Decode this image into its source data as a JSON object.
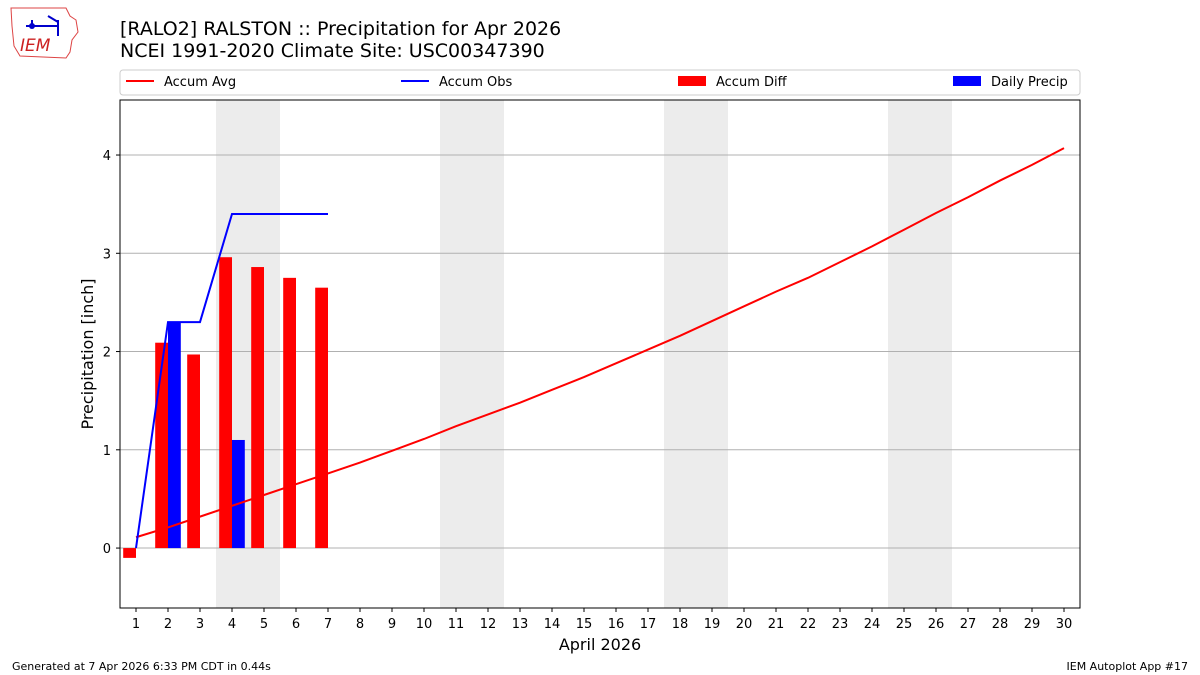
{
  "header": {
    "title": "[RALO2] RALSTON :: Precipitation for Apr 2026",
    "subtitle": "NCEI 1991-2020 Climate Site: USC00347390",
    "logo_text": "IEM"
  },
  "footer": {
    "left": "Generated at 7 Apr 2026 6:33 PM CDT in 0.44s",
    "right": "IEM Autoplot App #17"
  },
  "chart_data": {
    "type": "bar+line",
    "xlabel": "April 2026",
    "ylabel": "Precipitation [inch]",
    "xlim": [
      0.5,
      30.5
    ],
    "ylim": [
      -0.61,
      4.56
    ],
    "xticks": [
      1,
      2,
      3,
      4,
      5,
      6,
      7,
      8,
      9,
      10,
      11,
      12,
      13,
      14,
      15,
      16,
      17,
      18,
      19,
      20,
      21,
      22,
      23,
      24,
      25,
      26,
      27,
      28,
      29,
      30
    ],
    "yticks": [
      0,
      1,
      2,
      3,
      4
    ],
    "grid": "y",
    "legend_placement": "top",
    "weekend_shading": [
      [
        3.5,
        5.5
      ],
      [
        10.5,
        12.5
      ],
      [
        17.5,
        19.5
      ],
      [
        24.5,
        26.5
      ]
    ],
    "series": [
      {
        "name": "Accum Avg",
        "kind": "line",
        "color": "#ff0000",
        "x": [
          1,
          2,
          3,
          4,
          5,
          6,
          7,
          8,
          9,
          10,
          11,
          12,
          13,
          14,
          15,
          16,
          17,
          18,
          19,
          20,
          21,
          22,
          23,
          24,
          25,
          26,
          27,
          28,
          29,
          30
        ],
        "values": [
          0.11,
          0.21,
          0.32,
          0.43,
          0.54,
          0.65,
          0.76,
          0.87,
          0.99,
          1.11,
          1.24,
          1.36,
          1.48,
          1.61,
          1.74,
          1.88,
          2.02,
          2.16,
          2.31,
          2.46,
          2.61,
          2.75,
          2.91,
          3.07,
          3.24,
          3.41,
          3.57,
          3.74,
          3.9,
          4.07
        ]
      },
      {
        "name": "Accum Obs",
        "kind": "line",
        "color": "#0000ff",
        "x": [
          1,
          2,
          3,
          4,
          5,
          6,
          7
        ],
        "values": [
          0,
          2.3,
          2.3,
          3.4,
          3.4,
          3.4,
          3.4
        ]
      },
      {
        "name": "Accum Diff",
        "kind": "bar",
        "color": "#ff0000",
        "x": [
          1,
          2,
          3,
          4,
          5,
          6,
          7
        ],
        "values": [
          -0.1,
          2.09,
          1.97,
          2.96,
          2.86,
          2.75,
          2.65
        ]
      },
      {
        "name": "Daily Precip",
        "kind": "bar",
        "color": "#0000ff",
        "x": [
          1,
          2,
          3,
          4,
          5,
          6,
          7
        ],
        "values": [
          0,
          2.3,
          0,
          1.1,
          0,
          0,
          0
        ]
      }
    ]
  }
}
